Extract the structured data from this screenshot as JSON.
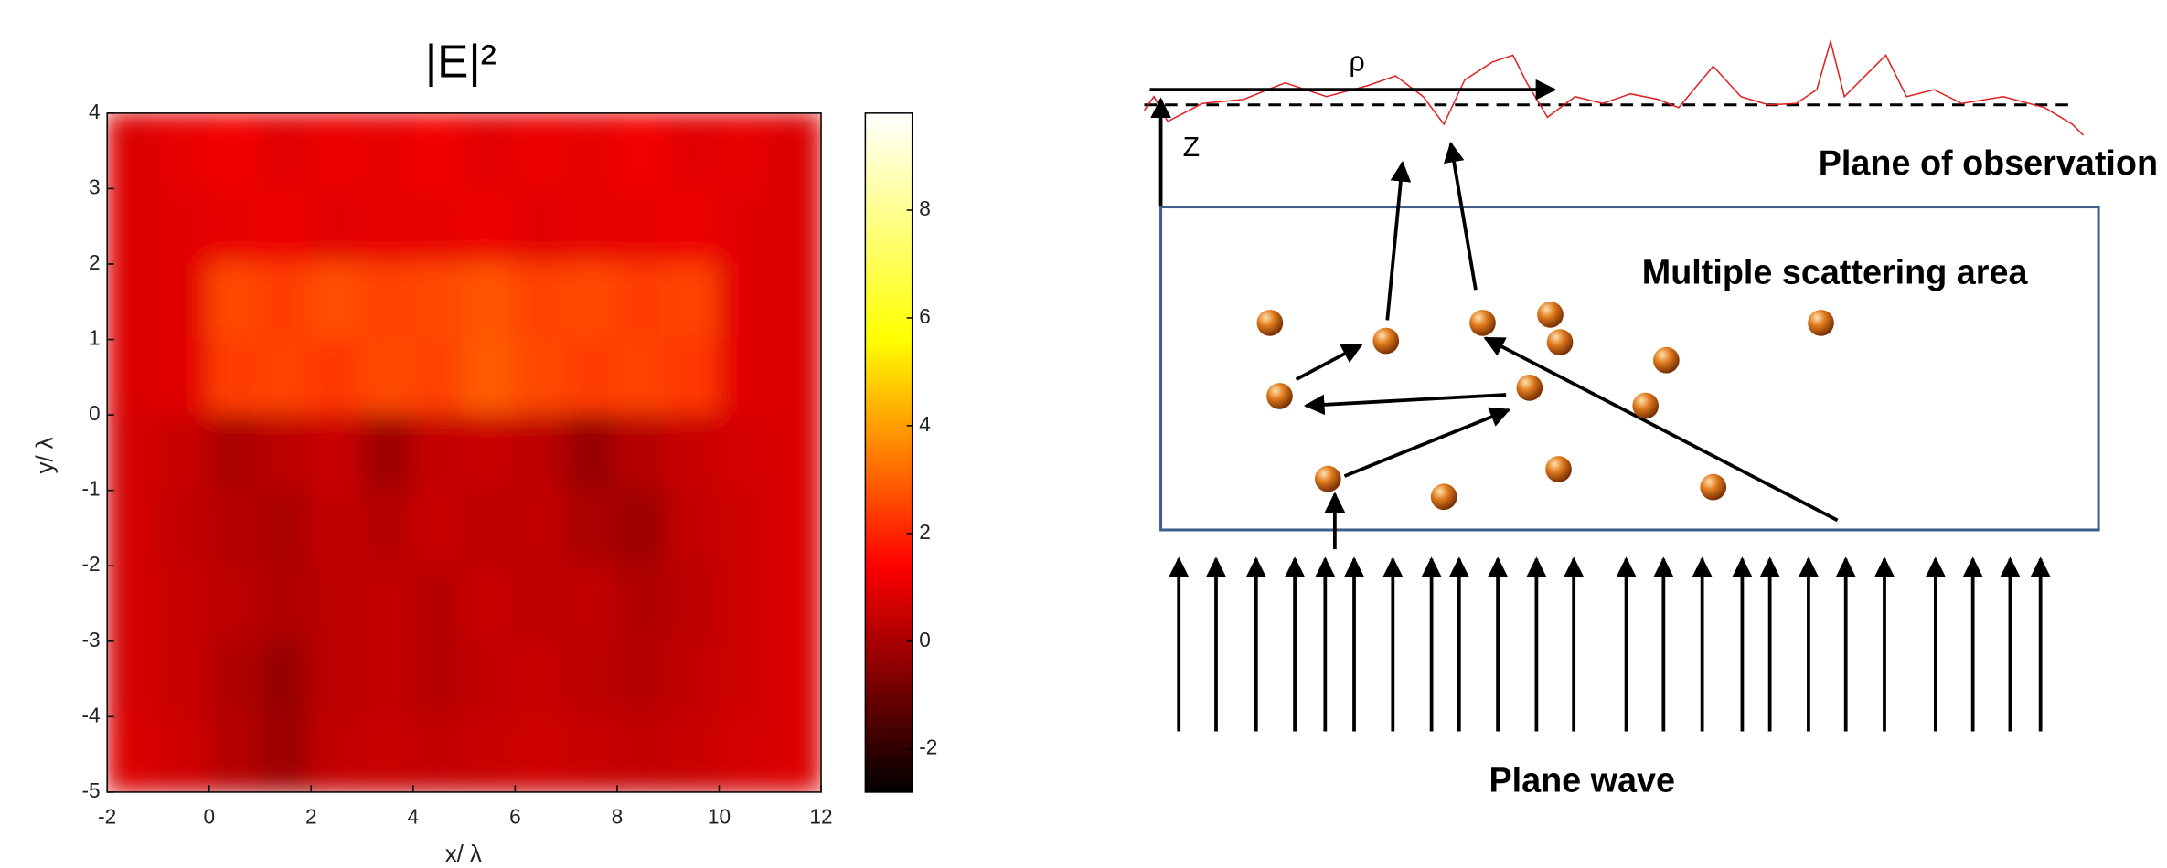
{
  "chart_data": {
    "type": "heatmap",
    "title": "|E|²",
    "x_label": "x/ λ",
    "y_label": "y/ λ",
    "xlim": [
      -2,
      12
    ],
    "ylim": [
      -5,
      4
    ],
    "xticks": [
      -2,
      0,
      2,
      4,
      6,
      8,
      10,
      12
    ],
    "yticks": [
      -5,
      -4,
      -3,
      -2,
      -1,
      0,
      1,
      2,
      3,
      4
    ],
    "x": [
      -1.5,
      -0.5,
      0.5,
      1.5,
      2.5,
      3.5,
      4.5,
      5.5,
      6.5,
      7.5,
      8.5,
      9.5,
      10.5,
      11.5
    ],
    "y": [
      3.5,
      2.5,
      1.5,
      0.5,
      -0.5,
      -1.5,
      -2.5,
      -3.5,
      -4.5
    ],
    "z": [
      [
        0.8,
        1.0,
        1.2,
        0.9,
        1.1,
        1.0,
        1.2,
        0.9,
        1.1,
        1.0,
        1.2,
        0.9,
        1.0,
        0.8
      ],
      [
        0.8,
        0.9,
        1.0,
        1.1,
        0.9,
        1.0,
        1.0,
        1.1,
        0.9,
        1.0,
        1.0,
        1.1,
        0.9,
        0.8
      ],
      [
        0.8,
        0.9,
        2.6,
        2.4,
        2.7,
        2.5,
        2.6,
        2.8,
        2.5,
        2.6,
        2.4,
        2.5,
        0.9,
        0.8
      ],
      [
        0.8,
        0.9,
        2.4,
        2.5,
        2.3,
        2.6,
        2.5,
        2.9,
        2.6,
        2.4,
        2.5,
        2.3,
        0.9,
        0.8
      ],
      [
        0.7,
        0.5,
        0.0,
        0.3,
        0.5,
        -0.2,
        0.4,
        0.5,
        0.3,
        -0.3,
        0.2,
        0.5,
        0.7,
        0.8
      ],
      [
        0.7,
        0.4,
        0.2,
        0.0,
        0.4,
        0.2,
        0.5,
        0.3,
        0.4,
        0.0,
        -0.2,
        0.4,
        0.6,
        0.8
      ],
      [
        0.7,
        0.5,
        0.3,
        0.1,
        0.3,
        0.4,
        0.2,
        0.5,
        0.3,
        0.4,
        0.1,
        0.3,
        0.6,
        0.8
      ],
      [
        0.7,
        0.5,
        0.1,
        -0.3,
        0.3,
        0.4,
        0.2,
        0.4,
        0.5,
        0.3,
        0.2,
        0.4,
        0.6,
        0.8
      ],
      [
        0.8,
        0.6,
        0.2,
        -0.2,
        0.4,
        0.5,
        0.4,
        0.5,
        0.6,
        0.5,
        0.4,
        0.5,
        0.7,
        0.8
      ]
    ],
    "clim": [
      -2.8,
      9.8
    ],
    "cticks": [
      -2,
      0,
      2,
      4,
      6,
      8
    ],
    "colormap": [
      "#000000",
      "#ff0000",
      "#ffff00",
      "#ffffff"
    ]
  },
  "diagram": {
    "rho": "ρ",
    "z": "Z",
    "observation": "Plane of observation",
    "area": "Multiple scattering area",
    "source": "Plane wave"
  }
}
